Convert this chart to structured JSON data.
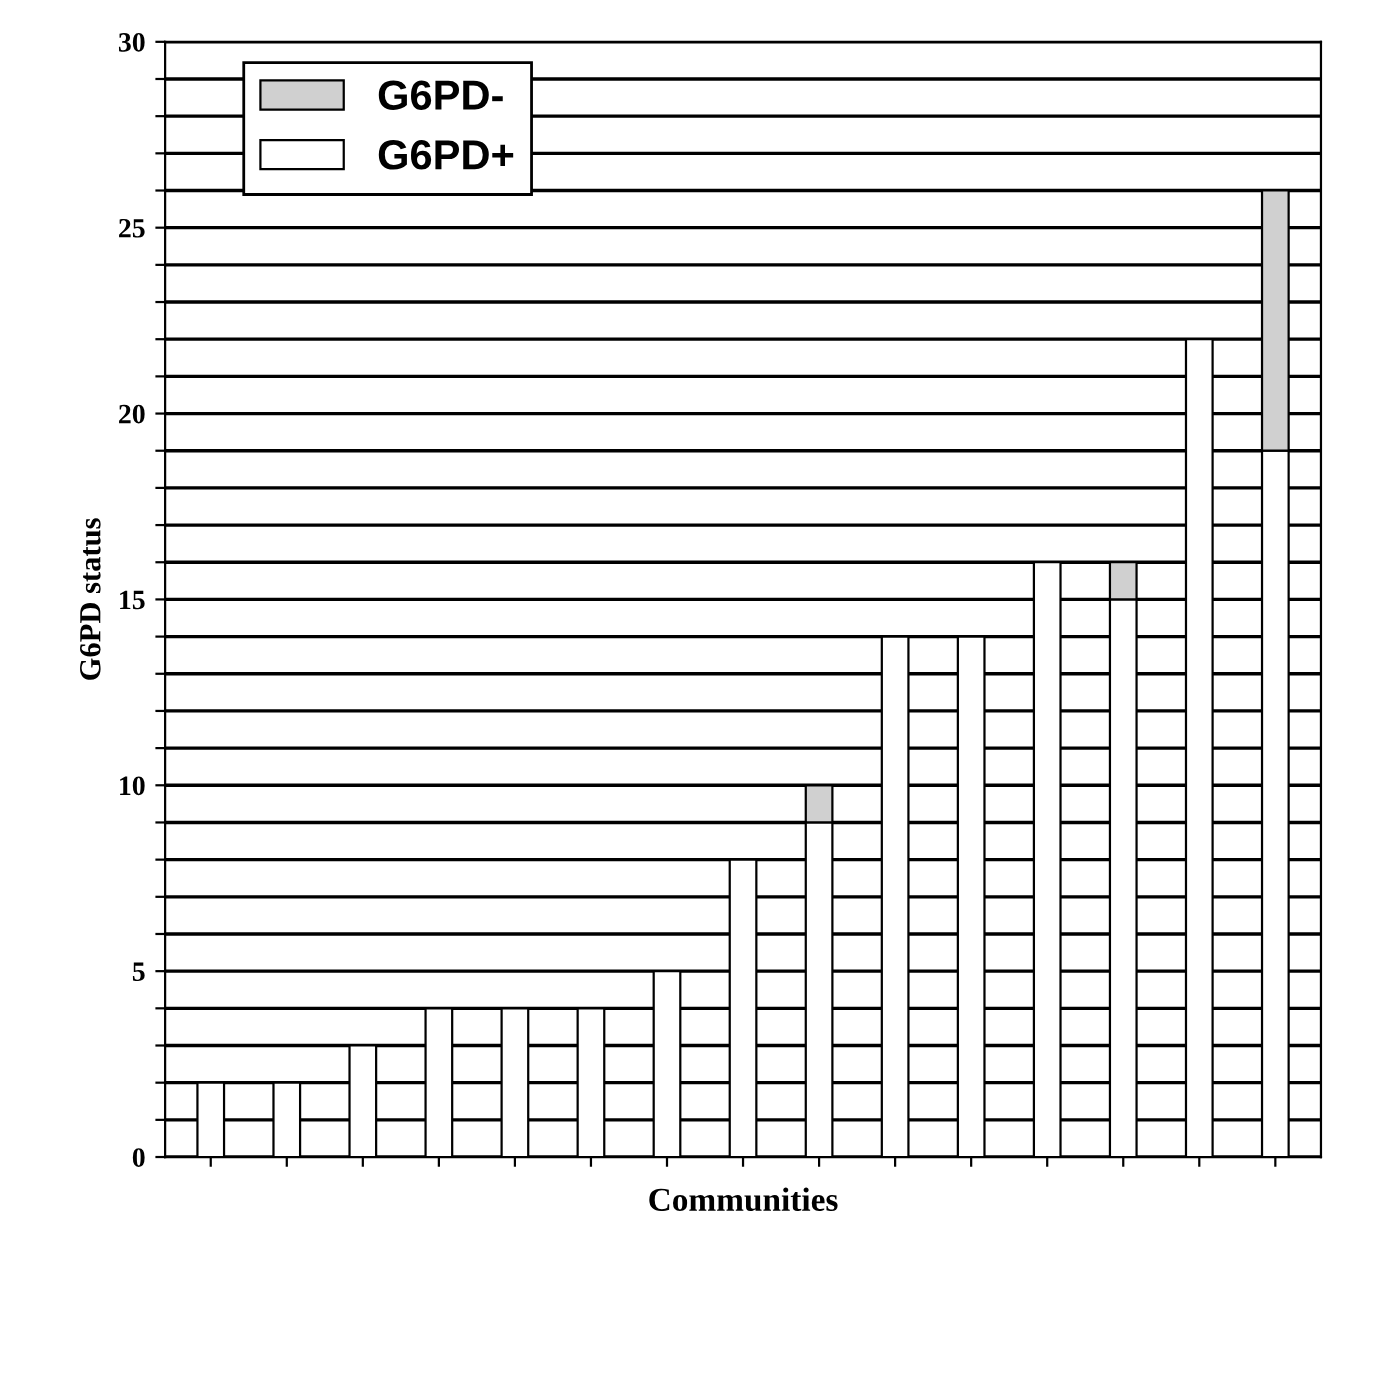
{
  "chart_data": {
    "type": "bar",
    "xlabel": "Communities",
    "ylabel": "G6PD status",
    "categories": [
      null,
      null,
      null,
      null,
      null,
      null,
      null,
      null,
      null,
      null,
      null,
      null,
      null,
      null,
      null
    ],
    "stacked": true,
    "series": [
      {
        "name": "G6PD+",
        "color": "#ffffff",
        "values": [
          2,
          2,
          3,
          4,
          4,
          4,
          5,
          8,
          9,
          14,
          14,
          16,
          15,
          22,
          19
        ]
      },
      {
        "name": "G6PD-",
        "color": "#d0d0d0",
        "values": [
          0,
          0,
          0,
          0,
          0,
          0,
          0,
          0,
          1,
          0,
          0,
          0,
          1,
          0,
          7
        ]
      }
    ],
    "ylim": [
      0,
      30
    ],
    "yticks": [
      0,
      {
        "value": 1,
        "label": null
      },
      {
        "value": 2,
        "label": null
      },
      {
        "value": 3,
        "label": null
      },
      {
        "value": 4,
        "label": null
      },
      5,
      {
        "value": 6,
        "label": null
      },
      {
        "value": 7,
        "label": null
      },
      {
        "value": 8,
        "label": null
      },
      {
        "value": 9,
        "label": null
      },
      10,
      {
        "value": 11,
        "label": null
      },
      {
        "value": 12,
        "label": null
      },
      {
        "value": 13,
        "label": null
      },
      {
        "value": 14,
        "label": null
      },
      15,
      {
        "value": 16,
        "label": null
      },
      {
        "value": 17,
        "label": null
      },
      {
        "value": 18,
        "label": null
      },
      {
        "value": 19,
        "label": null
      },
      20,
      {
        "value": 21,
        "label": null
      },
      {
        "value": 22,
        "label": null
      },
      {
        "value": 23,
        "label": null
      },
      {
        "value": 24,
        "label": null
      },
      25,
      {
        "value": 26,
        "label": null
      },
      {
        "value": 27,
        "label": null
      },
      {
        "value": 28,
        "label": null
      },
      {
        "value": 29,
        "label": null
      },
      30
    ],
    "grid": "y",
    "legend": "top left"
  }
}
